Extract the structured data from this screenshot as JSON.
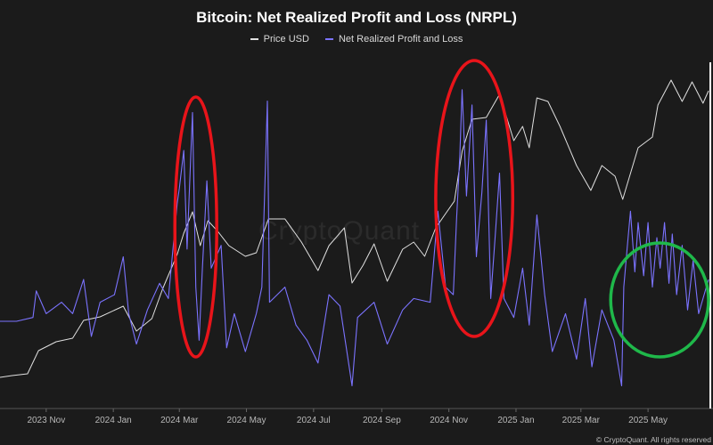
{
  "chart_data": {
    "type": "line",
    "title": "Bitcoin: Net Realized Profit and Loss (NRPL)",
    "x_tick_labels": [
      "2023 Nov",
      "2024 Jan",
      "2024 Mar",
      "2024 May",
      "2024 Jul",
      "2024 Sep",
      "2024 Nov",
      "2025 Jan",
      "2025 Mar",
      "2025 May"
    ],
    "x_range": [
      "2023-09-20",
      "2025-06-25"
    ],
    "grid": false,
    "legend_position": "top",
    "series": [
      {
        "name": "Price USD",
        "color": "#e0e0e0",
        "axis": "left-hidden",
        "points": [
          [
            "2023-09-20",
            26500
          ],
          [
            "2023-10-01",
            27000
          ],
          [
            "2023-10-15",
            27500
          ],
          [
            "2023-10-25",
            34000
          ],
          [
            "2023-11-10",
            36500
          ],
          [
            "2023-11-25",
            37500
          ],
          [
            "2023-12-05",
            42500
          ],
          [
            "2023-12-20",
            43500
          ],
          [
            "2024-01-10",
            46500
          ],
          [
            "2024-01-22",
            39500
          ],
          [
            "2024-02-05",
            43000
          ],
          [
            "2024-02-15",
            51500
          ],
          [
            "2024-02-28",
            61000
          ],
          [
            "2024-03-05",
            67000
          ],
          [
            "2024-03-13",
            73000
          ],
          [
            "2024-03-20",
            63500
          ],
          [
            "2024-03-27",
            70500
          ],
          [
            "2024-04-05",
            67500
          ],
          [
            "2024-04-15",
            63500
          ],
          [
            "2024-04-30",
            60500
          ],
          [
            "2024-05-10",
            61500
          ],
          [
            "2024-05-21",
            71000
          ],
          [
            "2024-06-05",
            71000
          ],
          [
            "2024-06-20",
            64500
          ],
          [
            "2024-07-05",
            56500
          ],
          [
            "2024-07-15",
            63500
          ],
          [
            "2024-07-29",
            68500
          ],
          [
            "2024-08-05",
            53000
          ],
          [
            "2024-08-15",
            58000
          ],
          [
            "2024-08-25",
            64000
          ],
          [
            "2024-09-06",
            53500
          ],
          [
            "2024-09-20",
            62500
          ],
          [
            "2024-09-30",
            64500
          ],
          [
            "2024-10-10",
            60500
          ],
          [
            "2024-10-20",
            68500
          ],
          [
            "2024-10-29",
            72500
          ],
          [
            "2024-11-06",
            76000
          ],
          [
            "2024-11-13",
            90000
          ],
          [
            "2024-11-22",
            99000
          ],
          [
            "2024-12-05",
            99500
          ],
          [
            "2024-12-17",
            106000
          ],
          [
            "2024-12-30",
            93000
          ],
          [
            "2025-01-07",
            97000
          ],
          [
            "2025-01-13",
            91000
          ],
          [
            "2025-01-20",
            105000
          ],
          [
            "2025-01-30",
            104000
          ],
          [
            "2025-02-10",
            97000
          ],
          [
            "2025-02-25",
            86000
          ],
          [
            "2025-03-10",
            79000
          ],
          [
            "2025-03-20",
            86000
          ],
          [
            "2025-04-01",
            83000
          ],
          [
            "2025-04-08",
            76500
          ],
          [
            "2025-04-22",
            91000
          ],
          [
            "2025-05-05",
            94000
          ],
          [
            "2025-05-10",
            103000
          ],
          [
            "2025-05-22",
            110000
          ],
          [
            "2025-06-01",
            104000
          ],
          [
            "2025-06-10",
            109500
          ],
          [
            "2025-06-20",
            103500
          ],
          [
            "2025-06-25",
            107000
          ]
        ]
      },
      {
        "name": "Net Realized Profit and Loss",
        "color": "#7b73ff",
        "axis": "right-hidden",
        "points": [
          [
            "2023-09-20",
            0.1
          ],
          [
            "2023-10-05",
            0.1
          ],
          [
            "2023-10-20",
            0.2
          ],
          [
            "2023-10-23",
            0.9
          ],
          [
            "2023-11-01",
            0.3
          ],
          [
            "2023-11-15",
            0.6
          ],
          [
            "2023-11-25",
            0.3
          ],
          [
            "2023-12-05",
            1.2
          ],
          [
            "2023-12-12",
            -0.3
          ],
          [
            "2023-12-20",
            0.6
          ],
          [
            "2024-01-02",
            0.8
          ],
          [
            "2024-01-10",
            1.8
          ],
          [
            "2024-01-15",
            0.3
          ],
          [
            "2024-01-22",
            -0.5
          ],
          [
            "2024-02-01",
            0.4
          ],
          [
            "2024-02-12",
            1.1
          ],
          [
            "2024-02-20",
            0.7
          ],
          [
            "2024-02-28",
            3.2
          ],
          [
            "2024-03-01",
            3.6
          ],
          [
            "2024-03-05",
            4.6
          ],
          [
            "2024-03-08",
            2.0
          ],
          [
            "2024-03-11",
            4.2
          ],
          [
            "2024-03-13",
            5.6
          ],
          [
            "2024-03-16",
            1.0
          ],
          [
            "2024-03-19",
            -0.4
          ],
          [
            "2024-03-22",
            1.5
          ],
          [
            "2024-03-26",
            3.8
          ],
          [
            "2024-03-30",
            1.5
          ],
          [
            "2024-04-08",
            2.1
          ],
          [
            "2024-04-13",
            -0.6
          ],
          [
            "2024-04-20",
            0.3
          ],
          [
            "2024-04-30",
            -0.7
          ],
          [
            "2024-05-10",
            0.3
          ],
          [
            "2024-05-15",
            1.0
          ],
          [
            "2024-05-20",
            5.9
          ],
          [
            "2024-05-22",
            0.6
          ],
          [
            "2024-06-05",
            1.0
          ],
          [
            "2024-06-15",
            0.0
          ],
          [
            "2024-06-25",
            -0.4
          ],
          [
            "2024-07-05",
            -1.0
          ],
          [
            "2024-07-15",
            0.8
          ],
          [
            "2024-07-25",
            0.5
          ],
          [
            "2024-08-05",
            -1.6
          ],
          [
            "2024-08-10",
            0.2
          ],
          [
            "2024-08-25",
            0.6
          ],
          [
            "2024-09-06",
            -0.5
          ],
          [
            "2024-09-20",
            0.4
          ],
          [
            "2024-09-30",
            0.7
          ],
          [
            "2024-10-15",
            0.6
          ],
          [
            "2024-10-22",
            3.0
          ],
          [
            "2024-10-29",
            1.0
          ],
          [
            "2024-11-05",
            0.8
          ],
          [
            "2024-11-08",
            2.8
          ],
          [
            "2024-11-11",
            4.5
          ],
          [
            "2024-11-13",
            6.2
          ],
          [
            "2024-11-17",
            3.4
          ],
          [
            "2024-11-22",
            5.8
          ],
          [
            "2024-11-26",
            1.8
          ],
          [
            "2024-12-01",
            3.5
          ],
          [
            "2024-12-05",
            5.4
          ],
          [
            "2024-12-09",
            0.7
          ],
          [
            "2024-12-13",
            2.3
          ],
          [
            "2024-12-17",
            4.0
          ],
          [
            "2024-12-21",
            0.7
          ],
          [
            "2024-12-30",
            0.2
          ],
          [
            "2025-01-07",
            1.5
          ],
          [
            "2025-01-13",
            0.0
          ],
          [
            "2025-01-20",
            2.9
          ],
          [
            "2025-01-27",
            0.8
          ],
          [
            "2025-02-03",
            -0.7
          ],
          [
            "2025-02-15",
            0.3
          ],
          [
            "2025-02-25",
            -0.9
          ],
          [
            "2025-03-05",
            0.7
          ],
          [
            "2025-03-11",
            -1.1
          ],
          [
            "2025-03-20",
            0.4
          ],
          [
            "2025-03-31",
            -0.4
          ],
          [
            "2025-04-07",
            -1.6
          ],
          [
            "2025-04-09",
            1.0
          ],
          [
            "2025-04-12",
            2.0
          ],
          [
            "2025-04-15",
            3.0
          ],
          [
            "2025-04-19",
            1.4
          ],
          [
            "2025-04-22",
            2.7
          ],
          [
            "2025-04-27",
            1.3
          ],
          [
            "2025-05-01",
            2.7
          ],
          [
            "2025-05-05",
            1.0
          ],
          [
            "2025-05-09",
            2.3
          ],
          [
            "2025-05-12",
            1.5
          ],
          [
            "2025-05-16",
            2.7
          ],
          [
            "2025-05-20",
            1.1
          ],
          [
            "2025-05-23",
            2.4
          ],
          [
            "2025-05-27",
            0.8
          ],
          [
            "2025-06-01",
            2.1
          ],
          [
            "2025-06-06",
            0.4
          ],
          [
            "2025-06-11",
            1.7
          ],
          [
            "2025-06-16",
            0.3
          ],
          [
            "2025-06-25",
            1.2
          ]
        ]
      }
    ],
    "annotations": [
      {
        "shape": "ellipse",
        "color": "#e8141a",
        "around": [
          "2024-02-26",
          "2024-04-04"
        ]
      },
      {
        "shape": "ellipse",
        "color": "#e8141a",
        "around": [
          "2024-10-20",
          "2024-12-29"
        ]
      },
      {
        "shape": "ellipse",
        "color": "#1fb84a",
        "around": [
          "2025-03-28",
          "2025-06-25"
        ]
      }
    ]
  },
  "watermark": "CryptoQuant",
  "credit": "© CryptoQuant. All rights reserved"
}
